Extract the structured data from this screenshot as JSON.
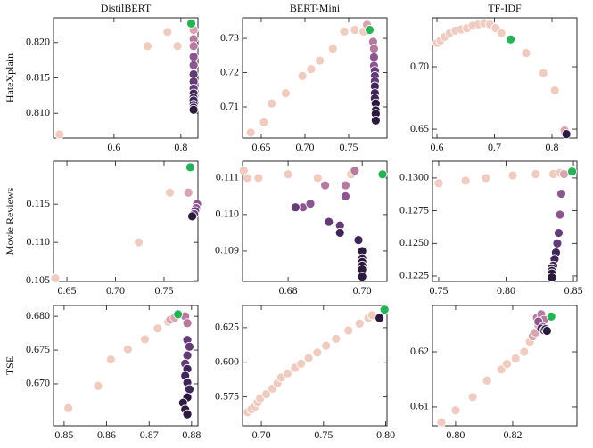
{
  "chart_data": [
    {
      "type": "scatter",
      "title": "DistilBERT",
      "ylabel": "HateXplain",
      "xlim": [
        0.419,
        0.851
      ],
      "ylim": [
        0.8065,
        0.8235
      ],
      "xticks": [
        0.6,
        0.8
      ],
      "yticks": [
        {
          "value": 0.82,
          "label": "0.820"
        },
        0.815,
        {
          "value": 0.81,
          "label": "0.810"
        }
      ],
      "series": [
        {
          "color": "#efcbc0",
          "x": [
            0.437,
            0.7,
            0.76,
            0.79
          ],
          "values": [
            0.807,
            0.8195,
            0.8215,
            0.8195
          ]
        },
        {
          "color": "#d9a4b0",
          "x": [
            0.838
          ],
          "values": [
            0.8218
          ]
        },
        {
          "color": "#b57a9e",
          "x": [
            0.838,
            0.838
          ],
          "values": [
            0.8205,
            0.8195
          ]
        },
        {
          "color": "#8c5690",
          "x": [
            0.838,
            0.838
          ],
          "values": [
            0.818,
            0.8168
          ]
        },
        {
          "color": "#633b77",
          "x": [
            0.838,
            0.838,
            0.838
          ],
          "values": [
            0.8155,
            0.8145,
            0.8135
          ]
        },
        {
          "color": "#3f2558",
          "x": [
            0.838,
            0.838,
            0.838,
            0.838
          ],
          "values": [
            0.8128,
            0.8122,
            0.8118,
            0.8112
          ]
        },
        {
          "color": "#2b1a3d",
          "x": [
            0.838,
            0.838
          ],
          "values": [
            0.8108,
            0.8105
          ]
        },
        {
          "color": "#25b356",
          "x": [
            0.831
          ],
          "values": [
            0.8227
          ]
        }
      ]
    },
    {
      "type": "scatter",
      "title": "BERT-Mini",
      "xlim": [
        0.6286,
        0.7939
      ],
      "ylim": [
        0.7009,
        0.736
      ],
      "xticks": [
        0.65,
        {
          "value": 0.7,
          "label": "0.70"
        },
        0.75
      ],
      "yticks": [
        0.73,
        0.72,
        0.71
      ],
      "series": [
        {
          "color": "#efcbc0",
          "x": [
            0.638,
            0.653,
            0.662,
            0.678,
            0.697,
            0.707,
            0.717,
            0.732,
            0.745,
            0.757,
            0.767
          ],
          "values": [
            0.7025,
            0.7055,
            0.711,
            0.714,
            0.719,
            0.721,
            0.7235,
            0.727,
            0.732,
            0.7325,
            0.732
          ]
        },
        {
          "color": "#d9a4b0",
          "x": [
            0.771
          ],
          "values": [
            0.734
          ]
        },
        {
          "color": "#b57a9e",
          "x": [
            0.778,
            0.779
          ],
          "values": [
            0.729,
            0.727
          ]
        },
        {
          "color": "#8c5690",
          "x": [
            0.779,
            0.779
          ],
          "values": [
            0.7245,
            0.722
          ]
        },
        {
          "color": "#633b77",
          "x": [
            0.78,
            0.78,
            0.78
          ],
          "values": [
            0.7205,
            0.719,
            0.7175
          ]
        },
        {
          "color": "#3f2558",
          "x": [
            0.78,
            0.78,
            0.78
          ],
          "values": [
            0.716,
            0.714,
            0.7125
          ]
        },
        {
          "color": "#2b1a3d",
          "x": [
            0.781,
            0.781,
            0.781,
            0.781
          ],
          "values": [
            0.711,
            0.709,
            0.708,
            0.706
          ]
        },
        {
          "color": "#25b356",
          "x": [
            0.774
          ],
          "values": [
            0.7325
          ]
        }
      ]
    },
    {
      "type": "scatter",
      "title": "TF-IDF",
      "xlim": [
        0.5922,
        0.8434
      ],
      "ylim": [
        0.6429,
        0.7393
      ],
      "xticks": [
        0.6,
        0.7,
        0.8
      ],
      "yticks": [
        {
          "value": 0.7,
          "label": "0.70"
        },
        0.65
      ],
      "series": [
        {
          "color": "#efcbc0",
          "x": [
            0.6,
            0.606,
            0.613,
            0.622,
            0.632,
            0.642,
            0.652,
            0.662,
            0.672,
            0.682,
            0.692,
            0.702,
            0.712,
            0.755,
            0.785,
            0.805
          ],
          "values": [
            0.719,
            0.721,
            0.724,
            0.727,
            0.729,
            0.73,
            0.731,
            0.733,
            0.734,
            0.735,
            0.734,
            0.731,
            0.727,
            0.711,
            0.695,
            0.681
          ]
        },
        {
          "color": "#d9a4b0",
          "x": [
            0.822
          ],
          "values": [
            0.649
          ]
        },
        {
          "color": "#2b1a3d",
          "x": [
            0.825
          ],
          "values": [
            0.646
          ]
        },
        {
          "color": "#25b356",
          "x": [
            0.728
          ],
          "values": [
            0.722
          ]
        }
      ]
    },
    {
      "type": "scatter",
      "ylabel": "Movie Reviews",
      "xlim": [
        0.6362,
        0.7849
      ],
      "ylim": [
        0.1049,
        0.1206
      ],
      "xticks": [
        0.65,
        {
          "value": 0.7,
          "label": "0.70"
        },
        0.75
      ],
      "yticks": [
        0.115,
        {
          "value": 0.11,
          "label": "0.110"
        },
        0.105
      ],
      "series": [
        {
          "color": "#efcbc0",
          "x": [
            0.638,
            0.724,
            0.756
          ],
          "values": [
            0.1053,
            0.11,
            0.1165
          ]
        },
        {
          "color": "#d9a4b0",
          "x": [
            0.775
          ],
          "values": [
            0.1165
          ]
        },
        {
          "color": "#8c5690",
          "x": [
            0.784,
            0.783
          ],
          "values": [
            0.115,
            0.1145
          ]
        },
        {
          "color": "#633b77",
          "x": [
            0.782,
            0.781
          ],
          "values": [
            0.1141,
            0.1137
          ]
        },
        {
          "color": "#2b1a3d",
          "x": [
            0.779
          ],
          "values": [
            0.1134
          ]
        },
        {
          "color": "#25b356",
          "x": [
            0.777
          ],
          "values": [
            0.1198
          ]
        }
      ]
    },
    {
      "type": "scatter",
      "xlim": [
        0.6677,
        0.7067
      ],
      "ylim": [
        0.10817,
        0.11146
      ],
      "xticks": [
        0.68,
        {
          "value": 0.7,
          "label": "0.70"
        }
      ],
      "yticks": [
        0.111,
        {
          "value": 0.11,
          "label": "0.110"
        },
        0.109
      ],
      "series": [
        {
          "color": "#efcbc0",
          "x": [
            0.668,
            0.669,
            0.672,
            0.68,
            0.688,
            0.697
          ],
          "values": [
            0.1112,
            0.111,
            0.111,
            0.1111,
            0.111,
            0.1111
          ]
        },
        {
          "color": "#b57a9e",
          "x": [
            0.69,
            0.6955,
            0.698
          ],
          "values": [
            0.1108,
            0.1108,
            0.1112
          ]
        },
        {
          "color": "#8c5690",
          "x": [
            0.684,
            0.686,
            0.6955
          ],
          "values": [
            0.1102,
            0.1103,
            0.1105
          ]
        },
        {
          "color": "#633b77",
          "x": [
            0.682,
            0.691,
            0.694
          ],
          "values": [
            0.1102,
            0.1098,
            0.1097
          ]
        },
        {
          "color": "#3f2558",
          "x": [
            0.694,
            0.699
          ],
          "values": [
            0.1095,
            0.1093
          ]
        },
        {
          "color": "#2b1a3d",
          "x": [
            0.7,
            0.7,
            0.7,
            0.7,
            0.7,
            0.7
          ],
          "values": [
            0.109,
            0.1088,
            0.1087,
            0.1086,
            0.1085,
            0.1083
          ]
        },
        {
          "color": "#25b356",
          "x": [
            0.7055
          ],
          "values": [
            0.1111
          ]
        }
      ]
    },
    {
      "type": "scatter",
      "xlim": [
        0.7454,
        0.8526
      ],
      "ylim": [
        0.12209,
        0.13129
      ],
      "xticks": [
        0.75,
        {
          "value": 0.8,
          "label": "0.80"
        },
        0.85
      ],
      "yticks": [
        {
          "value": 0.13,
          "label": "0.1300"
        },
        0.1275,
        {
          "value": 0.125,
          "label": "0.1250"
        },
        0.1225
      ],
      "series": [
        {
          "color": "#efcbc0",
          "x": [
            0.75,
            0.77,
            0.785,
            0.805,
            0.822,
            0.835,
            0.84
          ],
          "values": [
            0.1296,
            0.1298,
            0.13,
            0.1302,
            0.1303,
            0.1303,
            0.1304
          ]
        },
        {
          "color": "#d9a4b0",
          "x": [
            0.843
          ],
          "values": [
            0.1303
          ]
        },
        {
          "color": "#8c5690",
          "x": [
            0.841,
            0.84
          ],
          "values": [
            0.1288,
            0.1272
          ]
        },
        {
          "color": "#633b77",
          "x": [
            0.839,
            0.838
          ],
          "values": [
            0.1258,
            0.125
          ]
        },
        {
          "color": "#3f2558",
          "x": [
            0.837,
            0.836,
            0.835
          ],
          "values": [
            0.1243,
            0.1238,
            0.1233
          ]
        },
        {
          "color": "#2b1a3d",
          "x": [
            0.834,
            0.834,
            0.834,
            0.834
          ],
          "values": [
            0.1231,
            0.1229,
            0.1227,
            0.1224
          ]
        },
        {
          "color": "#25b356",
          "x": [
            0.849
          ],
          "values": [
            0.1305
          ]
        }
      ]
    },
    {
      "type": "scatter",
      "ylabel": "TSE",
      "xlim": [
        0.8475,
        0.8815
      ],
      "ylim": [
        0.6638,
        0.6816
      ],
      "xticks": [
        0.85,
        0.86,
        0.87,
        0.88
      ],
      "yticks": [
        {
          "value": 0.68,
          "label": "0.680"
        },
        0.675,
        {
          "value": 0.67,
          "label": "0.670"
        }
      ],
      "series": [
        {
          "color": "#efcbc0",
          "x": [
            0.851,
            0.858,
            0.861,
            0.865,
            0.869,
            0.872,
            0.8745
          ],
          "values": [
            0.6664,
            0.6697,
            0.6736,
            0.6751,
            0.6766,
            0.6782,
            0.6792
          ]
        },
        {
          "color": "#d9a4b0",
          "x": [
            0.875,
            0.876
          ],
          "values": [
            0.6795,
            0.6798
          ]
        },
        {
          "color": "#b57a9e",
          "x": [
            0.8785,
            0.879
          ],
          "values": [
            0.68,
            0.679
          ]
        },
        {
          "color": "#633b77",
          "x": [
            0.879,
            0.8795,
            0.879,
            0.8785
          ],
          "values": [
            0.6765,
            0.6755,
            0.6742,
            0.673
          ]
        },
        {
          "color": "#3f2558",
          "x": [
            0.879,
            0.8785,
            0.879,
            0.8795
          ],
          "values": [
            0.6722,
            0.6712,
            0.6702,
            0.6692
          ]
        },
        {
          "color": "#2b1a3d",
          "x": [
            0.879,
            0.878,
            0.8785,
            0.879
          ],
          "values": [
            0.668,
            0.6672,
            0.6662,
            0.6655
          ]
        },
        {
          "color": "#25b356",
          "x": [
            0.8768
          ],
          "values": [
            0.6803
          ]
        }
      ]
    },
    {
      "type": "scatter",
      "xlim": [
        0.6849,
        0.801
      ],
      "ylim": [
        0.5542,
        0.641
      ],
      "xticks": [
        {
          "value": 0.7,
          "label": "0.70"
        },
        0.75,
        {
          "value": 0.8,
          "label": "0.80"
        }
      ],
      "yticks": [
        0.625,
        {
          "value": 0.6,
          "label": "0.600"
        },
        0.575
      ],
      "series": [
        {
          "color": "#efcbc0",
          "x": [
            0.689,
            0.692,
            0.695,
            0.697,
            0.699,
            0.704,
            0.709,
            0.713,
            0.716,
            0.721,
            0.727,
            0.732,
            0.738,
            0.745,
            0.752,
            0.76,
            0.77,
            0.779,
            0.786,
            0.789
          ],
          "values": [
            0.564,
            0.566,
            0.568,
            0.571,
            0.574,
            0.577,
            0.581,
            0.585,
            0.589,
            0.592,
            0.596,
            0.599,
            0.603,
            0.607,
            0.612,
            0.617,
            0.623,
            0.628,
            0.632,
            0.634
          ]
        },
        {
          "color": "#2b1a3d",
          "x": [
            0.795
          ],
          "values": [
            0.632
          ]
        },
        {
          "color": "#25b356",
          "x": [
            0.799
          ],
          "values": [
            0.638
          ]
        }
      ]
    },
    {
      "type": "scatter",
      "xlim": [
        0.7919,
        0.8425
      ],
      "ylim": [
        0.6066,
        0.6284
      ],
      "xticks": [
        {
          "value": 0.8,
          "label": "0.80"
        },
        0.82
      ],
      "yticks": [
        0.62,
        0.61
      ],
      "series": [
        {
          "color": "#efcbc0",
          "x": [
            0.795,
            0.8,
            0.806,
            0.811,
            0.816,
            0.818,
            0.821,
            0.824,
            0.826
          ],
          "values": [
            0.6072,
            0.6094,
            0.6118,
            0.6148,
            0.6168,
            0.6178,
            0.6188,
            0.62,
            0.6218
          ]
        },
        {
          "color": "#d9a4b0",
          "x": [
            0.827,
            0.828,
            0.829
          ],
          "values": [
            0.6228,
            0.6235,
            0.6248
          ]
        },
        {
          "color": "#b57a9e",
          "x": [
            0.8285,
            0.83,
            0.831
          ],
          "values": [
            0.6262,
            0.6268,
            0.6258
          ]
        },
        {
          "color": "#8c5690",
          "x": [
            0.829,
            0.8305
          ],
          "values": [
            0.6255,
            0.6245
          ]
        },
        {
          "color": "#3f2558",
          "x": [
            0.83,
            0.831,
            0.832
          ],
          "values": [
            0.6242,
            0.6239,
            0.6238
          ]
        },
        {
          "color": "#2b1a3d",
          "x": [
            0.8315,
            0.832
          ],
          "values": [
            0.6241,
            0.6238
          ]
        },
        {
          "color": "#25b356",
          "x": [
            0.8335
          ],
          "values": [
            0.6264
          ]
        }
      ]
    }
  ]
}
